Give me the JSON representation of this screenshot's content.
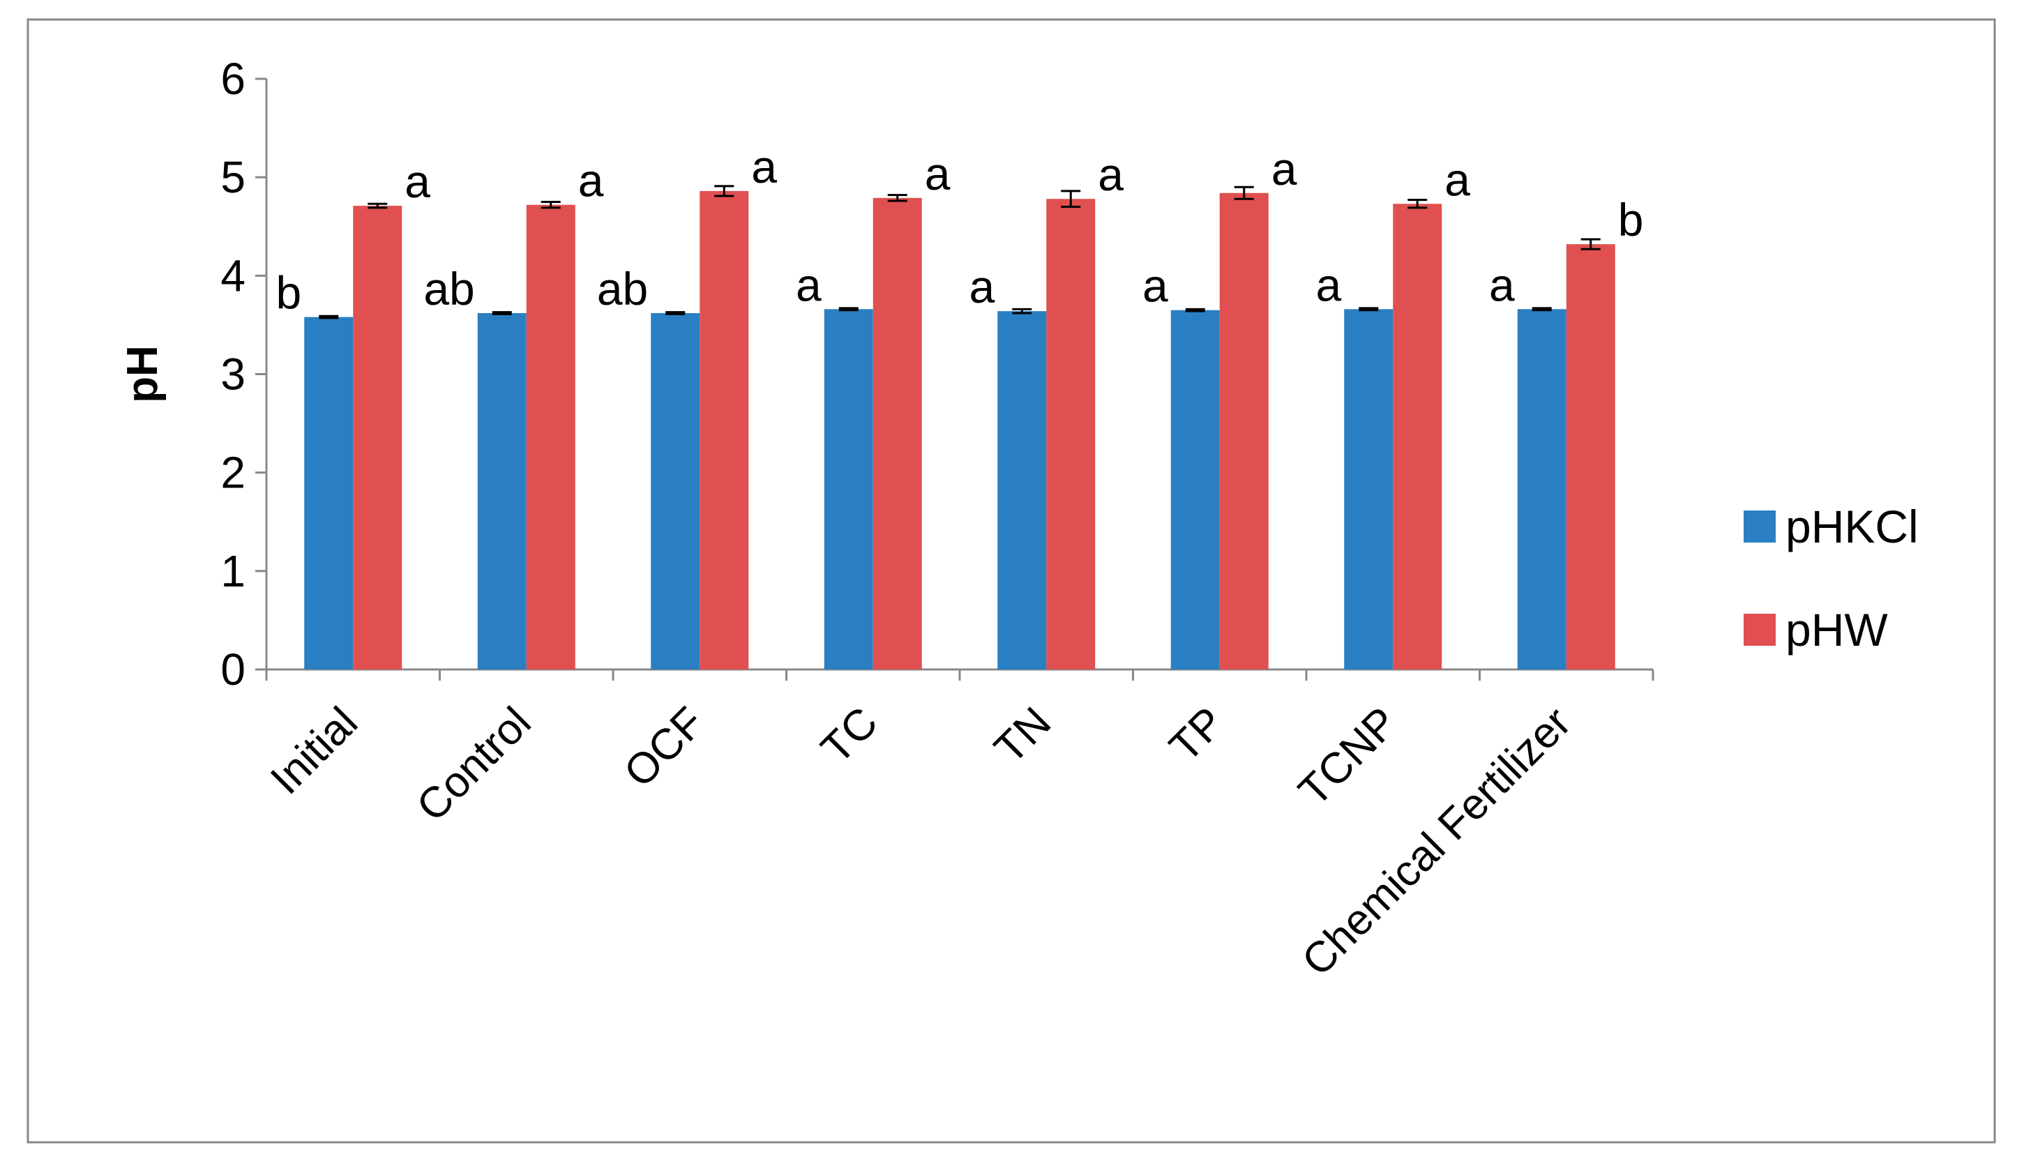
{
  "chart_data": {
    "type": "bar",
    "title": "",
    "xlabel": "",
    "ylabel": "pH",
    "ylim": [
      0,
      6
    ],
    "yticks": [
      0,
      1,
      2,
      3,
      4,
      5,
      6
    ],
    "grid": false,
    "legend_position": "right",
    "categories": [
      "Initial",
      "Control",
      "OCF",
      "TC",
      "TN",
      "TP",
      "TCNP",
      "Chemical Fertilizer"
    ],
    "series": [
      {
        "name": "pHKCl",
        "color": "#2A7FC2",
        "values": [
          3.58,
          3.62,
          3.62,
          3.66,
          3.64,
          3.65,
          3.66,
          3.66
        ],
        "errors": [
          0.01,
          0.01,
          0.01,
          0.01,
          0.02,
          0.01,
          0.01,
          0.01
        ],
        "significance": [
          "b",
          "ab",
          "ab",
          "a",
          "a",
          "a",
          "a",
          "a"
        ]
      },
      {
        "name": "pHW",
        "color": "#E05050",
        "values": [
          4.71,
          4.72,
          4.86,
          4.79,
          4.78,
          4.84,
          4.73,
          4.32
        ],
        "errors": [
          0.02,
          0.03,
          0.05,
          0.03,
          0.08,
          0.06,
          0.04,
          0.05
        ],
        "significance": [
          "a",
          "a",
          "a",
          "a",
          "a",
          "a",
          "a",
          "b"
        ]
      }
    ]
  }
}
